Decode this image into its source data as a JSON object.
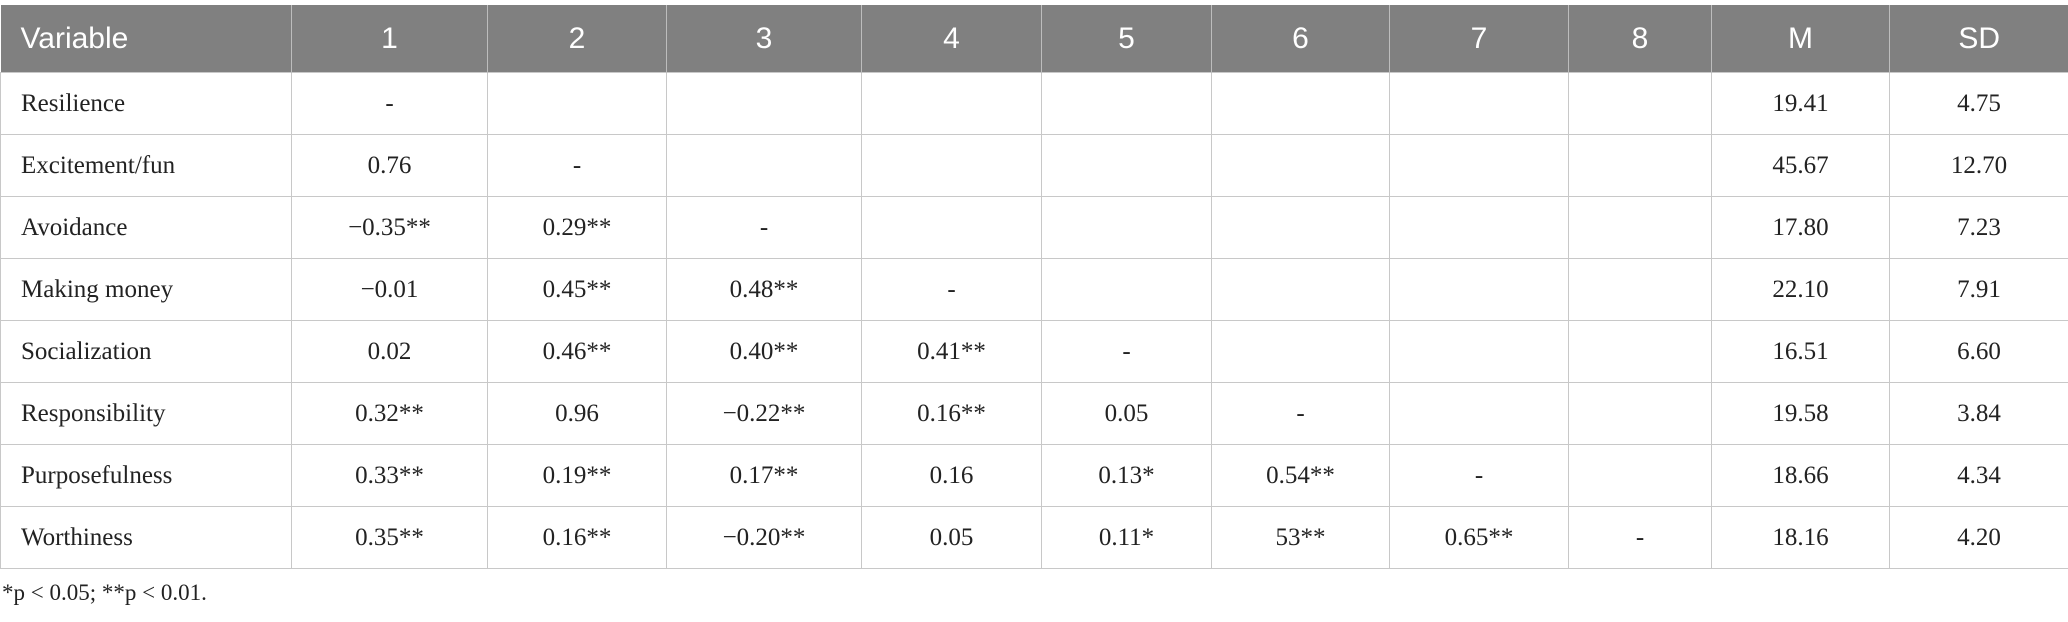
{
  "table": {
    "header": [
      "Variable",
      "1",
      "2",
      "3",
      "4",
      "5",
      "6",
      "7",
      "8",
      "M",
      "SD"
    ],
    "rows": [
      {
        "label": "Resilience",
        "values": [
          "-"
        ],
        "m": "19.41",
        "sd": "4.75"
      },
      {
        "label": "Excitement/fun",
        "values": [
          "0.76",
          "-"
        ],
        "m": "45.67",
        "sd": "12.70"
      },
      {
        "label": "Avoidance",
        "values": [
          "−0.35**",
          "0.29**",
          "-"
        ],
        "m": "17.80",
        "sd": "7.23"
      },
      {
        "label": "Making money",
        "values": [
          "−0.01",
          "0.45**",
          "0.48**",
          "-"
        ],
        "m": "22.10",
        "sd": "7.91"
      },
      {
        "label": "Socialization",
        "values": [
          "0.02",
          "0.46**",
          "0.40**",
          "0.41**",
          "-"
        ],
        "m": "16.51",
        "sd": "6.60"
      },
      {
        "label": "Responsibility",
        "values": [
          "0.32**",
          "0.96",
          "−0.22**",
          "0.16**",
          "0.05",
          "-"
        ],
        "m": "19.58",
        "sd": "3.84"
      },
      {
        "label": "Purposefulness",
        "values": [
          "0.33**",
          "0.19**",
          "0.17**",
          "0.16",
          "0.13*",
          "0.54**",
          "-"
        ],
        "m": "18.66",
        "sd": "4.34"
      },
      {
        "label": "Worthiness",
        "values": [
          "0.35**",
          "0.16**",
          "−0.20**",
          "0.05",
          "0.11*",
          "53**",
          "0.65**",
          "-"
        ],
        "m": "18.16",
        "sd": "4.20"
      }
    ]
  },
  "footnote": "*p < 0.05; **p < 0.01."
}
